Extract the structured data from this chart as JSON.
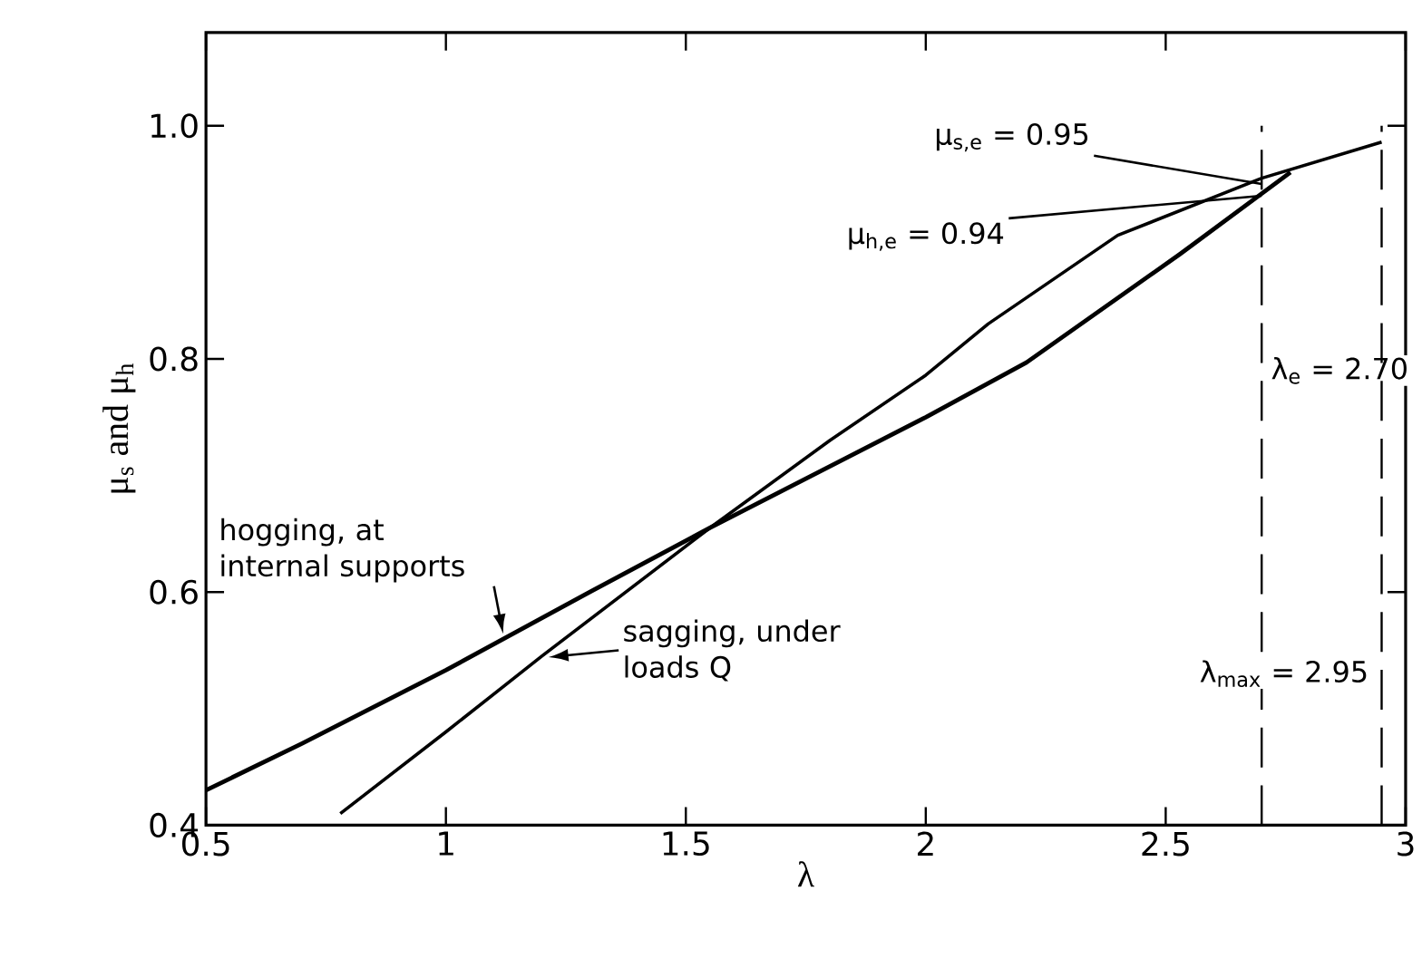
{
  "chart_data": {
    "type": "line",
    "xlabel": "λ",
    "ylabel": "μ$_{s}$ and μ$_{h}$",
    "xlim": [
      0.5,
      3
    ],
    "ylim": [
      0.4,
      1.08
    ],
    "xticks": [
      0.5,
      1,
      1.5,
      2,
      2.5,
      3
    ],
    "yticks": [
      0.4,
      0.6,
      0.8,
      {
        "value": 1.0,
        "label": "1.0"
      }
    ],
    "grid": false,
    "marker": "none",
    "line_style": "solid",
    "series": [
      {
        "color": "#000000",
        "x": [
          0.5,
          0.7,
          1.0,
          1.3,
          1.55,
          2.0,
          2.21,
          2.53,
          2.76
        ],
        "values": [
          0.43,
          0.47,
          0.533,
          0.6,
          0.655,
          0.75,
          0.797,
          0.89,
          0.96
        ]
      },
      {
        "color": "#000000",
        "x": [
          0.78,
          1.0,
          1.2,
          1.55,
          1.8,
          2.0,
          2.13,
          2.4,
          2.7,
          2.95
        ],
        "values": [
          0.41,
          0.48,
          0.545,
          0.655,
          0.73,
          0.786,
          0.83,
          0.906,
          0.955,
          0.986
        ]
      }
    ],
    "ref_lines": [
      {
        "axis": "x",
        "value": 2.7,
        "label": "λ$_{e}$ = 2.70",
        "color": "#000000",
        "line_style": "dashed"
      },
      {
        "axis": "x",
        "value": 2.95,
        "label": "λ$_{max}$ = 2.95",
        "color": "#000000",
        "line_style": "dashed"
      }
    ],
    "annotations": [
      {
        "text": "hogging, at internal supports",
        "x": 1.12,
        "y": 0.5625
      },
      {
        "text": "sagging, under loads Q",
        "x": 1.21,
        "y": 0.544
      },
      {
        "text": "μ$_{s,e}$ = 0.95",
        "x": 2.7,
        "y": 0.95
      },
      {
        "text": "μ$_{h,e}$ = 0.94",
        "x": 2.7,
        "y": 0.94
      }
    ]
  }
}
